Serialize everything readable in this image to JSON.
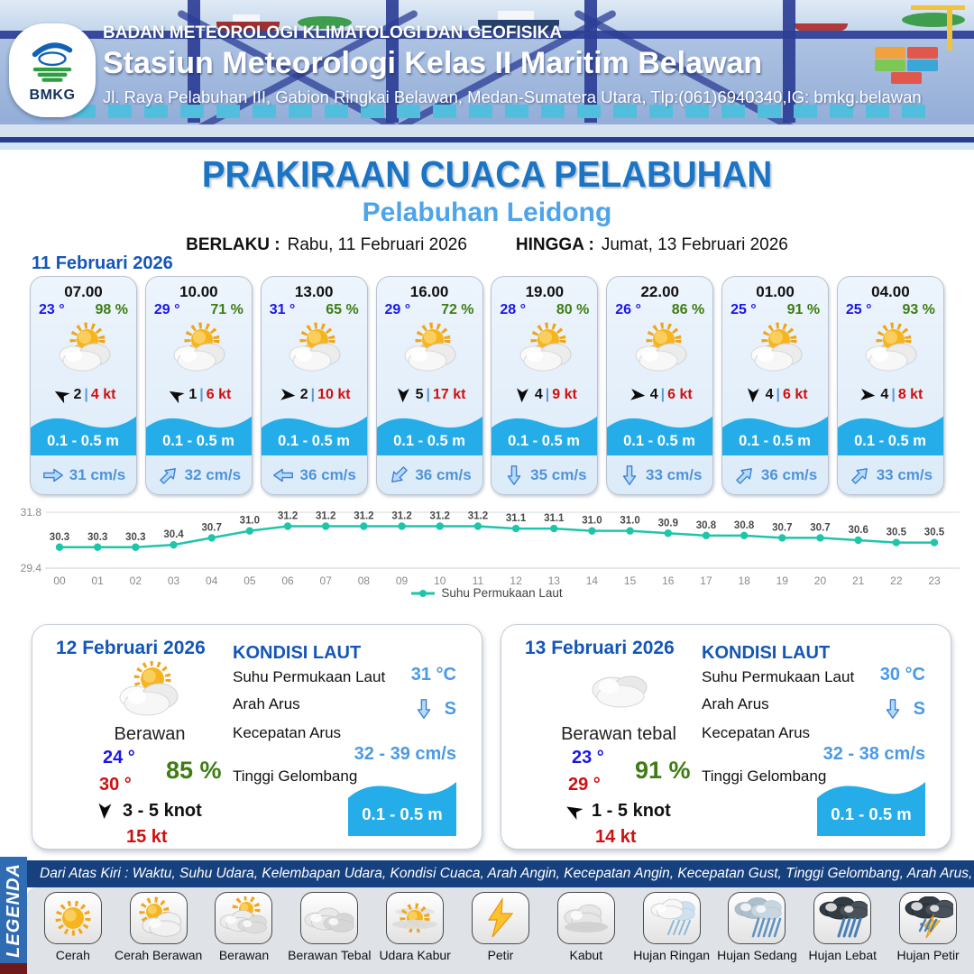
{
  "header": {
    "logo_text": "BMKG",
    "agency": "BADAN METEOROLOGI KLIMATOLOGI DAN GEOFISIKA",
    "station": "Stasiun Meteorologi Kelas II Maritim Belawan",
    "address": "Jl. Raya Pelabuhan III, Gabion Ringkai Belawan, Medan-Sumatera Utara, Tlp:(061)6940340,IG: bmkg.belawan"
  },
  "title": {
    "main": "PRAKIRAAN CUACA PELABUHAN",
    "port": "Pelabuhan Leidong",
    "berlaku_label": "BERLAKU :",
    "berlaku_value": "Rabu, 11 Februari 2026",
    "hingga_label": "HINGGA :",
    "hingga_value": "Jumat, 13 Februari 2026"
  },
  "day1": {
    "date": "11 Februari 2026",
    "hours": [
      {
        "time": "07.00",
        "temp": "23 °",
        "rh": "98 %",
        "icon": "cerah-berawan",
        "wind_speed": "2",
        "wind_deg": -60,
        "gust": "4 kt",
        "wave": "0.1 - 0.5 m",
        "current_deg": 0,
        "current": "31 cm/s"
      },
      {
        "time": "10.00",
        "temp": "29 °",
        "rh": "71 %",
        "icon": "cerah-berawan",
        "wind_speed": "1",
        "wind_deg": -60,
        "gust": "6 kt",
        "wave": "0.1 - 0.5 m",
        "current_deg": -45,
        "current": "32 cm/s"
      },
      {
        "time": "13.00",
        "temp": "31 °",
        "rh": "65 %",
        "icon": "cerah-berawan",
        "wind_speed": "2",
        "wind_deg": 95,
        "gust": "10 kt",
        "wave": "0.1 - 0.5 m",
        "current_deg": 180,
        "current": "36 cm/s"
      },
      {
        "time": "16.00",
        "temp": "29 °",
        "rh": "72 %",
        "icon": "cerah-berawan",
        "wind_speed": "5",
        "wind_deg": 183,
        "gust": "17 kt",
        "wave": "0.1 - 0.5 m",
        "current_deg": 135,
        "current": "36 cm/s"
      },
      {
        "time": "19.00",
        "temp": "28 °",
        "rh": "80 %",
        "icon": "cerah-berawan",
        "wind_speed": "4",
        "wind_deg": 183,
        "gust": "9 kt",
        "wave": "0.1 - 0.5 m",
        "current_deg": 90,
        "current": "35 cm/s"
      },
      {
        "time": "22.00",
        "temp": "26 °",
        "rh": "86 %",
        "icon": "cerah-berawan",
        "wind_speed": "4",
        "wind_deg": 95,
        "gust": "6 kt",
        "wave": "0.1 - 0.5 m",
        "current_deg": 90,
        "current": "33 cm/s"
      },
      {
        "time": "01.00",
        "temp": "25 °",
        "rh": "91 %",
        "icon": "cerah-berawan",
        "wind_speed": "4",
        "wind_deg": 183,
        "gust": "6 kt",
        "wave": "0.1 - 0.5 m",
        "current_deg": -45,
        "current": "36 cm/s"
      },
      {
        "time": "04.00",
        "temp": "25 °",
        "rh": "93 %",
        "icon": "cerah-berawan",
        "wind_speed": "4",
        "wind_deg": 95,
        "gust": "8 kt",
        "wave": "0.1 - 0.5 m",
        "current_deg": -45,
        "current": "33 cm/s"
      }
    ]
  },
  "chart_data": {
    "type": "line",
    "title": "",
    "xlabel": "",
    "ylabel": "",
    "x": [
      "00",
      "01",
      "02",
      "03",
      "04",
      "05",
      "06",
      "07",
      "08",
      "09",
      "10",
      "11",
      "12",
      "13",
      "14",
      "15",
      "16",
      "17",
      "18",
      "19",
      "20",
      "21",
      "22",
      "23"
    ],
    "series": [
      {
        "name": "Suhu Permukaan Laut",
        "values": [
          30.3,
          30.3,
          30.3,
          30.4,
          30.7,
          31.0,
          31.2,
          31.2,
          31.2,
          31.2,
          31.2,
          31.2,
          31.1,
          31.1,
          31.0,
          31.0,
          30.9,
          30.8,
          30.8,
          30.7,
          30.7,
          30.6,
          30.5,
          30.5
        ]
      }
    ],
    "ylim": [
      29.4,
      31.8
    ],
    "yticks": [
      "31.8",
      "29.4"
    ],
    "line_color": "#1fc5a9",
    "grid": true,
    "data_labels": true,
    "legend_position": "bottom"
  },
  "days": [
    {
      "date": "12 Februari 2026",
      "icon": "cerah-berawan",
      "condition": "Berawan",
      "temp_min": "24 °",
      "temp_max": "30 °",
      "rh": "85 %",
      "wind_deg": 183,
      "wind_range": "3 - 5 knot",
      "gust": "15 kt",
      "sea": {
        "heading": "KONDISI LAUT",
        "sst_label": "Suhu Permukaan Laut",
        "sst": "31 °C",
        "arah_label": "Arah Arus",
        "arah_deg": 90,
        "arah": "S",
        "kec_label": "Kecepatan Arus",
        "kec": "32 - 39 cm/s",
        "wave_label": "Tinggi Gelombang",
        "wave": "0.1 - 0.5 m"
      }
    },
    {
      "date": "13 Februari 2026",
      "icon": "berawan-tebal",
      "condition": "Berawan tebal",
      "temp_min": "23 °",
      "temp_max": "29 °",
      "rh": "91 %",
      "wind_deg": -60,
      "wind_range": "1 - 5 knot",
      "gust": "14 kt",
      "sea": {
        "heading": "KONDISI LAUT",
        "sst_label": "Suhu Permukaan Laut",
        "sst": "30 °C",
        "arah_label": "Arah Arus",
        "arah_deg": 90,
        "arah": "S",
        "kec_label": "Kecepatan Arus",
        "kec": "32 - 38 cm/s",
        "wave_label": "Tinggi Gelombang",
        "wave": "0.1 - 0.5 m"
      }
    }
  ],
  "legend": {
    "sidebar": "LEGENDA",
    "header": "Dari Atas Kiri : Waktu, Suhu Udara, Kelembapan Udara, Kondisi Cuaca, Arah Angin, Kecepatan Angin, Kecepatan Gust, Tinggi Gelombang, Arah Arus, Kecepatan Arus",
    "items": [
      {
        "label": "Cerah",
        "icon": "sun"
      },
      {
        "label": "Cerah Berawan",
        "icon": "sun-cloud"
      },
      {
        "label": "Berawan",
        "icon": "sun-clouds"
      },
      {
        "label": "Berawan Tebal",
        "icon": "clouds"
      },
      {
        "label": "Udara Kabur",
        "icon": "hazy-sun"
      },
      {
        "label": "Petir",
        "icon": "lightning"
      },
      {
        "label": "Kabut",
        "icon": "fog"
      },
      {
        "label": "Hujan Ringan",
        "icon": "light-rain"
      },
      {
        "label": "Hujan Sedang",
        "icon": "moderate-rain"
      },
      {
        "label": "Hujan Lebat",
        "icon": "heavy-rain"
      },
      {
        "label": "Hujan Petir",
        "icon": "thunderstorm"
      }
    ]
  },
  "colors": {
    "accent_blue": "#1b74c4",
    "port_blue": "#4da4ea",
    "temp_blue": "#1a16e8",
    "humidity_green": "#3f7d14",
    "gust_red": "#cf0f0f",
    "wave_blue": "#25ade9",
    "current_blue": "#4f93d9",
    "chart_teal": "#1fc5a9",
    "legend_navy": "#16407e",
    "legend_sidebar_blue": "#2f6cb3"
  }
}
